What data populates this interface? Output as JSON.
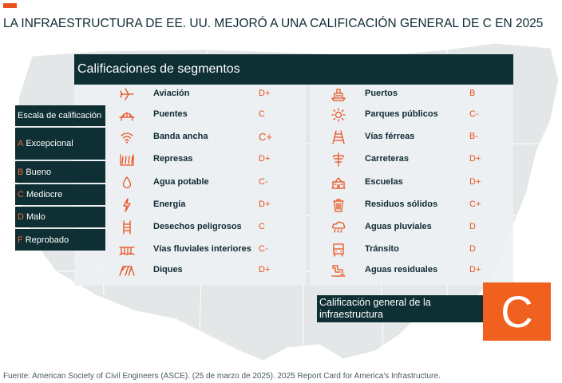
{
  "headline": "LA INFRAESTRUCTURA DE EE. UU. MEJORÓ A UNA CALIFICACIÓN GENERAL DE C EN 2025",
  "segments_title": "Calificaciones de segmentos",
  "scale": {
    "title": "Escala de calificación",
    "items": [
      {
        "letter": "A",
        "label": "Excepcional"
      },
      {
        "letter": "B",
        "label": "Bueno"
      },
      {
        "letter": "C",
        "label": "Mediocre"
      },
      {
        "letter": "D",
        "label": "Malo"
      },
      {
        "letter": "F",
        "label": "Reprobado"
      }
    ]
  },
  "left_segments": [
    {
      "icon": "airplane-icon",
      "name": "Aviación",
      "grade": "D+"
    },
    {
      "icon": "bridge-icon",
      "name": "Puentes",
      "grade": "C"
    },
    {
      "icon": "wifi-icon",
      "name": "Banda ancha",
      "grade": "C+"
    },
    {
      "icon": "dam-icon",
      "name": "Represas",
      "grade": "D+"
    },
    {
      "icon": "water-drop-icon",
      "name": "Agua potable",
      "grade": "C-"
    },
    {
      "icon": "lightning-icon",
      "name": "Energía",
      "grade": "D+"
    },
    {
      "icon": "hazard-ladder-icon",
      "name": "Desechos peligrosos",
      "grade": "C"
    },
    {
      "icon": "waterway-icon",
      "name": "Vías fluviales interiores",
      "grade": "C-"
    },
    {
      "icon": "levee-icon",
      "name": "Diques",
      "grade": "D+"
    }
  ],
  "right_segments": [
    {
      "icon": "port-icon",
      "name": "Puertos",
      "grade": "B"
    },
    {
      "icon": "sun-icon",
      "name": "Parques públicos",
      "grade": "C-"
    },
    {
      "icon": "rail-icon",
      "name": "Vías férreas",
      "grade": "B-"
    },
    {
      "icon": "road-icon",
      "name": "Carreteras",
      "grade": "D+"
    },
    {
      "icon": "school-icon",
      "name": "Escuelas",
      "grade": "D+"
    },
    {
      "icon": "trash-icon",
      "name": "Residuos sólidos",
      "grade": "C+"
    },
    {
      "icon": "rain-cloud-icon",
      "name": "Aguas pluviales",
      "grade": "D"
    },
    {
      "icon": "transit-icon",
      "name": "Tránsito",
      "grade": "D"
    },
    {
      "icon": "wastewater-icon",
      "name": "Aguas residuales",
      "grade": "D+"
    }
  ],
  "overall": {
    "label": "Calificación general de la infraestructura",
    "grade": "C"
  },
  "source": "Fuente: American Society of Civil Engineers (ASCE). (25 de marzo de 2025). 2025 Report Card for America's Infrastructure.",
  "colors": {
    "dark": "#0e2f34",
    "accent": "#e8501e",
    "map": "#e6e9ea"
  }
}
